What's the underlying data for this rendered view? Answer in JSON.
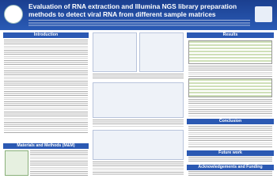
{
  "header": {
    "title": "Evaluation of RNA extraction and Illumina NGS library preparation methods to detect viral RNA from different sample matrices"
  },
  "sections": {
    "introduction": "Introduction",
    "materials_methods": "Materials and Methods (M&M)",
    "results": "Results",
    "conclusion": "Conclusion",
    "future_work": "Future work",
    "acknowledgements": "Acknowledgements and Funding"
  }
}
